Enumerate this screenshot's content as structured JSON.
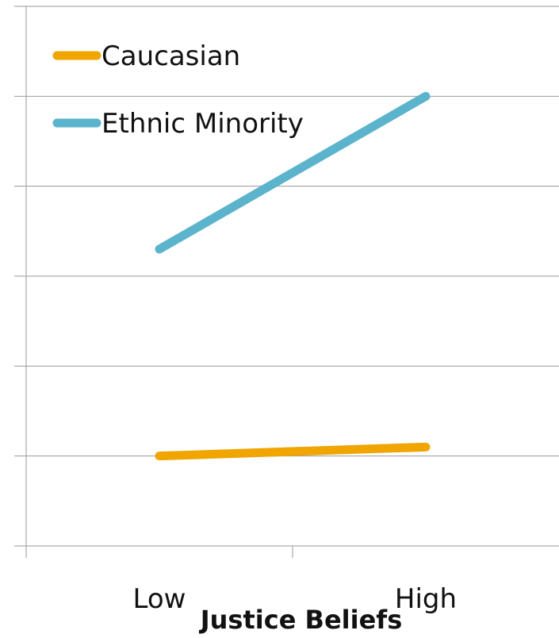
{
  "chart_data": {
    "type": "line",
    "categories": [
      "Low",
      "High"
    ],
    "series": [
      {
        "name": "Caucasian",
        "values": [
          0.6,
          0.7
        ],
        "color": "#F0A500"
      },
      {
        "name": "Ethnic Minority",
        "values": [
          2.9,
          4.6
        ],
        "color": "#5BB3CC"
      }
    ],
    "title": "",
    "xlabel": "Justice Beliefs",
    "ylabel": "",
    "ylim": [
      -0.4,
      5.6
    ],
    "grid": true,
    "legend": "top-left"
  }
}
